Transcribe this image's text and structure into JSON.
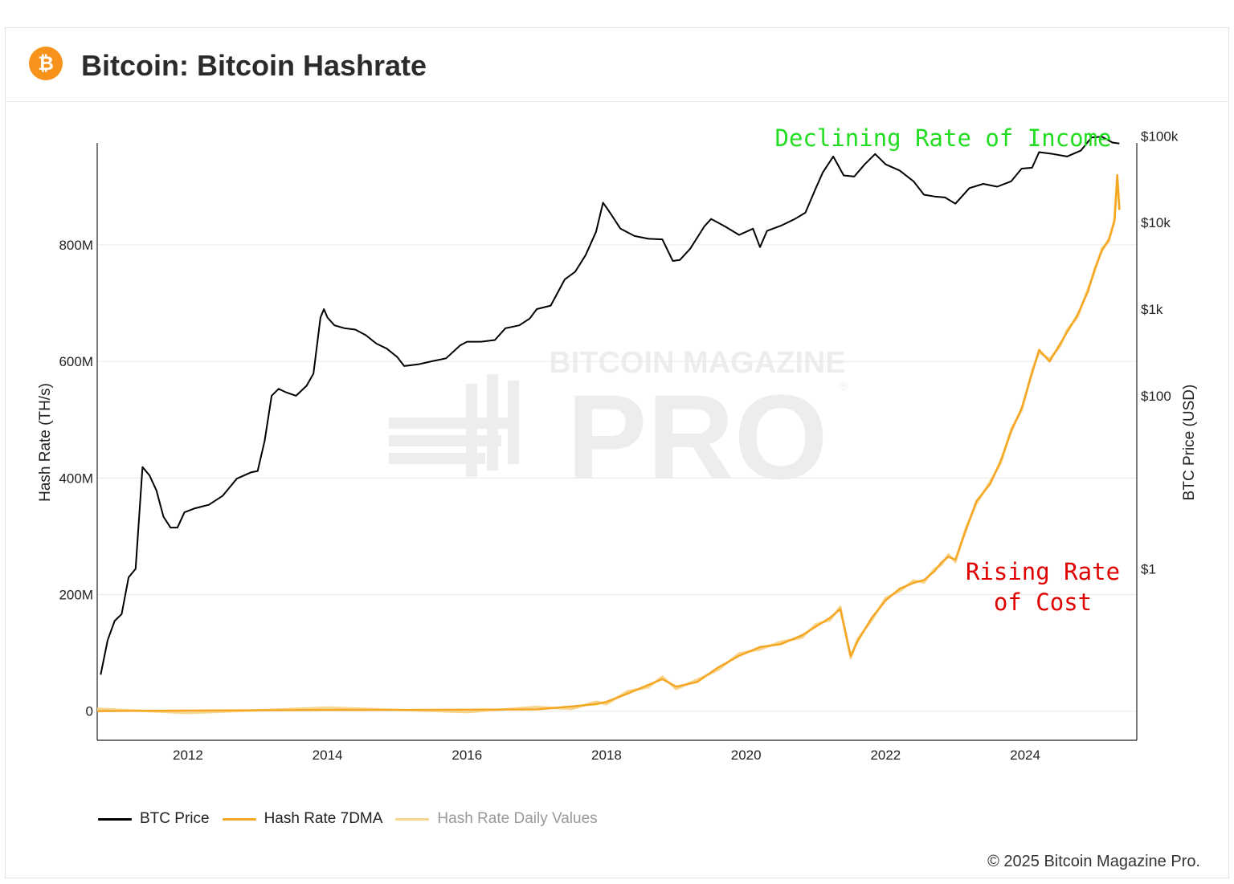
{
  "header": {
    "title": "Bitcoin: Bitcoin Hashrate",
    "logo_icon": "bitcoin-logo-icon",
    "logo_color": "#f7931a"
  },
  "copyright": "© 2025 Bitcoin Magazine Pro.",
  "watermark": {
    "line1": "BITCOIN MAGAZINE",
    "line2": "PRO",
    "mark": "®"
  },
  "colors": {
    "btc_price": "#000000",
    "hash_rate_7dma": "#f5a623",
    "hash_rate_daily": "#f7d58c",
    "annotation_income": "#22dd22",
    "annotation_cost": "#e00000",
    "grid": "#e8e8e8"
  },
  "chart_data": {
    "type": "line",
    "title": "Bitcoin: Bitcoin Hashrate",
    "xlabel": "",
    "ylabel": "Hash Rate (TH/s)",
    "y2label": "BTC Price (USD)",
    "xlim": [
      2010.7,
      2025.6
    ],
    "ylim": [
      -50000000,
      975000000
    ],
    "y2_scale": "log",
    "y2lim_log10": [
      -1.98,
      4.92
    ],
    "x_ticks": [
      "2012",
      "2014",
      "2016",
      "2018",
      "2020",
      "2022",
      "2024"
    ],
    "y_ticks": [
      "0",
      "200M",
      "400M",
      "600M",
      "800M"
    ],
    "y2_ticks": [
      "$1",
      "$100",
      "$1k",
      "$10k",
      "$100k"
    ],
    "y2_tick_values": [
      1,
      100,
      1000,
      10000,
      100000
    ],
    "grid": true,
    "legend_position": "bottom-left",
    "annotations": [
      {
        "text": "Declining Rate of Income",
        "color": "#22dd22"
      },
      {
        "text": "Rising Rate",
        "color": "#e00000"
      },
      {
        "text": "of Cost",
        "color": "#e00000"
      }
    ],
    "series": [
      {
        "name": "BTC Price",
        "axis": "right",
        "x": [
          2010.75,
          2010.85,
          2010.95,
          2011.05,
          2011.15,
          2011.25,
          2011.35,
          2011.45,
          2011.55,
          2011.65,
          2011.75,
          2011.85,
          2011.95,
          2012.1,
          2012.3,
          2012.5,
          2012.7,
          2012.9,
          2013.0,
          2013.1,
          2013.2,
          2013.3,
          2013.4,
          2013.55,
          2013.7,
          2013.8,
          2013.9,
          2013.95,
          2014.0,
          2014.1,
          2014.25,
          2014.4,
          2014.55,
          2014.7,
          2014.85,
          2015.0,
          2015.1,
          2015.3,
          2015.5,
          2015.7,
          2015.9,
          2016.0,
          2016.2,
          2016.4,
          2016.55,
          2016.75,
          2016.9,
          2017.0,
          2017.2,
          2017.4,
          2017.55,
          2017.7,
          2017.85,
          2017.95,
          2018.05,
          2018.2,
          2018.4,
          2018.6,
          2018.8,
          2018.95,
          2019.05,
          2019.2,
          2019.4,
          2019.5,
          2019.7,
          2019.9,
          2020.1,
          2020.2,
          2020.3,
          2020.5,
          2020.7,
          2020.85,
          2021.0,
          2021.1,
          2021.25,
          2021.4,
          2021.55,
          2021.7,
          2021.85,
          2022.0,
          2022.2,
          2022.4,
          2022.55,
          2022.7,
          2022.85,
          2023.0,
          2023.2,
          2023.4,
          2023.6,
          2023.8,
          2023.95,
          2024.1,
          2024.2,
          2024.4,
          2024.6,
          2024.8,
          2024.95,
          2025.1,
          2025.25,
          2025.35
        ],
        "values": [
          0.06,
          0.15,
          0.25,
          0.3,
          0.8,
          1.0,
          15,
          12,
          8,
          4,
          3,
          3,
          4.5,
          5,
          5.5,
          7,
          11,
          13,
          13.5,
          30,
          100,
          120,
          110,
          100,
          130,
          180,
          800,
          1000,
          800,
          650,
          600,
          580,
          500,
          400,
          350,
          280,
          220,
          230,
          250,
          270,
          380,
          420,
          420,
          440,
          600,
          650,
          780,
          1000,
          1100,
          2200,
          2700,
          4200,
          7800,
          17000,
          13000,
          8500,
          7000,
          6500,
          6400,
          3600,
          3700,
          5000,
          9000,
          11000,
          9000,
          7200,
          8500,
          5200,
          8000,
          9200,
          11000,
          13000,
          25000,
          38000,
          58000,
          35000,
          34000,
          47000,
          62000,
          47000,
          40000,
          30000,
          21000,
          20000,
          19500,
          16500,
          25000,
          28000,
          26000,
          30000,
          42000,
          43000,
          65000,
          62000,
          58000,
          68000,
          96000,
          98000,
          84000,
          82000
        ]
      },
      {
        "name": "Hash Rate 7DMA",
        "axis": "left",
        "x": [
          2010.7,
          2012.0,
          2014.0,
          2016.0,
          2017.0,
          2017.5,
          2017.85,
          2018.0,
          2018.3,
          2018.6,
          2018.8,
          2019.0,
          2019.3,
          2019.6,
          2019.9,
          2020.2,
          2020.5,
          2020.8,
          2021.0,
          2021.2,
          2021.35,
          2021.5,
          2021.6,
          2021.8,
          2022.0,
          2022.2,
          2022.4,
          2022.55,
          2022.7,
          2022.8,
          2022.9,
          2023.0,
          2023.15,
          2023.3,
          2023.5,
          2023.65,
          2023.8,
          2023.95,
          2024.1,
          2024.2,
          2024.35,
          2024.5,
          2024.6,
          2024.75,
          2024.9,
          2025.0,
          2025.1,
          2025.2,
          2025.28,
          2025.32,
          2025.35
        ],
        "values": [
          0,
          1000000,
          2000000,
          2500000,
          3000000,
          8000000,
          12000000,
          16000000,
          30000000,
          45000000,
          55000000,
          42000000,
          50000000,
          75000000,
          95000000,
          110000000,
          115000000,
          130000000,
          145000000,
          160000000,
          175000000,
          95000000,
          120000000,
          160000000,
          190000000,
          210000000,
          220000000,
          225000000,
          240000000,
          255000000,
          265000000,
          260000000,
          310000000,
          360000000,
          390000000,
          430000000,
          480000000,
          520000000,
          580000000,
          620000000,
          600000000,
          630000000,
          650000000,
          680000000,
          720000000,
          760000000,
          790000000,
          810000000,
          840000000,
          920000000,
          860000000
        ]
      },
      {
        "name": "Hash Rate Daily Values",
        "axis": "left"
      }
    ]
  }
}
